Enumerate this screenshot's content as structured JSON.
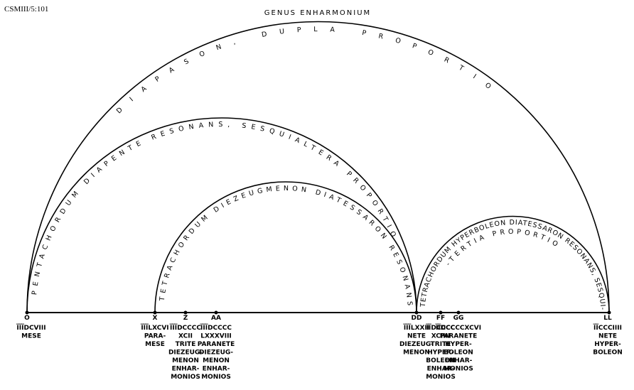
{
  "header": {
    "source": "CSMIII/5:101",
    "title": "GENUS ENHARMONIUM"
  },
  "arcs": [
    {
      "text": "DIAPASON, DUPLA PROPORTIO"
    },
    {
      "text": "PENTACHORDUM DIAPENTE RESONANS, SESQUIALTERA PROPORTIO"
    },
    {
      "text": "TETRACHORDUM DIEZEUGMENON DIATESSARON RESONANS"
    },
    {
      "text": "TETRACHORDUM HYPERBOLEON DIATESSARON RESONANS, SESQUI-",
      "text2": "-TERTIA PROPORTIO"
    }
  ],
  "nodes": [
    {
      "letter": "O",
      "lines": [
        "I̅I̅I̅DCVIII",
        "MESE"
      ]
    },
    {
      "letter": "X",
      "lines": [
        "I̅I̅I̅LXCVI",
        "PARA-",
        "MESE"
      ]
    },
    {
      "letter": "Z",
      "lines": [
        "I̅I̅I̅DCCCC",
        "XCII",
        "TRITE",
        "DIEZEUG-",
        "MENON",
        "ENHAR-",
        "MONIOS"
      ]
    },
    {
      "letter": "AA",
      "lines": [
        "I̅I̅I̅DCCCC",
        "LXXXVIII",
        "PARANETE",
        "DIEZEUG-",
        "MENON",
        "ENHAR-",
        "MONIOS"
      ]
    },
    {
      "letter": "DD",
      "lines": [
        "I̅I̅I̅LXXII",
        "NETE",
        "DIEZEUG-",
        "MENON"
      ]
    },
    {
      "letter": "FF",
      "lines": [
        "I̅I̅DCCCC",
        "XCIIII",
        "TRITE",
        "HYPER-",
        "BOLEON",
        "ENHAR-",
        "MONIOS"
      ]
    },
    {
      "letter": "GG",
      "lines": [
        "I̅I̅DCCCCXCVI",
        "PARANETE",
        "HYPER-",
        "BOLEON",
        "ENHAR-",
        "MONIOS"
      ]
    },
    {
      "letter": "LL",
      "lines": [
        "I̅I̅CCCIIII",
        "NETE",
        "HYPER-",
        "BOLEON"
      ]
    }
  ]
}
